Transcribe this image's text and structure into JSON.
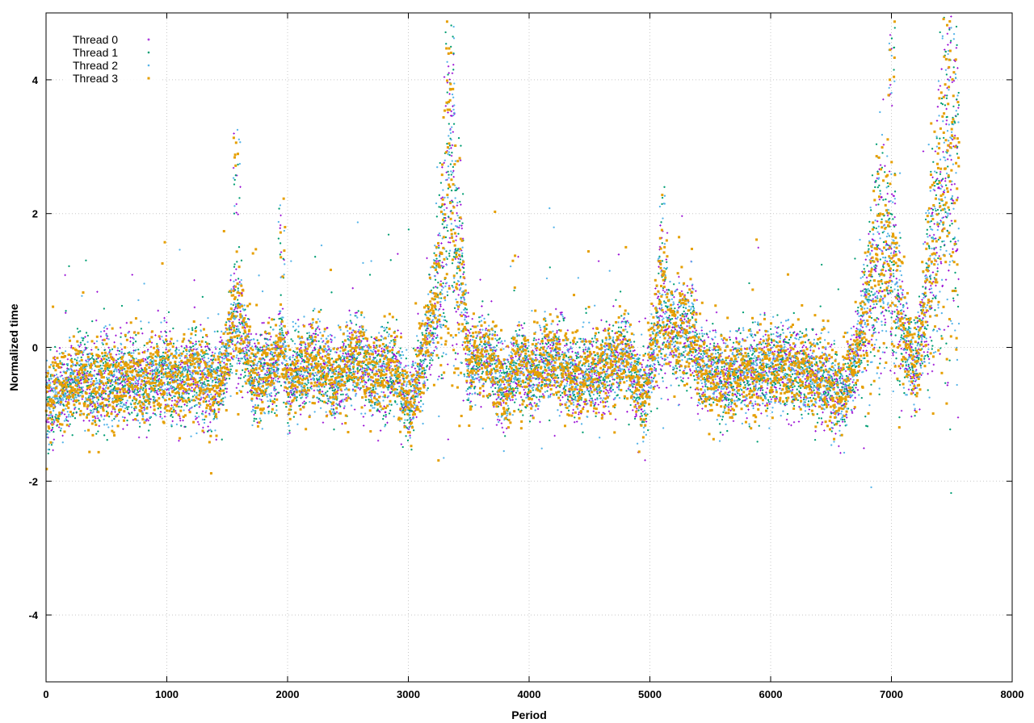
{
  "chart_data": {
    "type": "scatter",
    "title": "",
    "xlabel": "Period",
    "ylabel": "Normalized time",
    "xlim": [
      0,
      8000
    ],
    "ylim": [
      -5,
      5
    ],
    "x_ticks": [
      0,
      1000,
      2000,
      3000,
      4000,
      5000,
      6000,
      7000,
      8000
    ],
    "y_ticks": [
      -4,
      -2,
      0,
      2,
      4
    ],
    "x_tick_labels": [
      "0",
      "1000",
      "2000",
      "3000",
      "4000",
      "5000",
      "6000",
      "7000",
      "8000"
    ],
    "y_tick_labels": [
      "-4",
      "-2",
      "0",
      "2",
      "4"
    ],
    "grid": true,
    "legend_position": "top-left",
    "n_points_per_series": 7560,
    "series": [
      {
        "name": "Thread 0",
        "color": "#9400d3",
        "marker": "plus"
      },
      {
        "name": "Thread 1",
        "color": "#009e73",
        "marker": "dot"
      },
      {
        "name": "Thread 2",
        "color": "#56b4e9",
        "marker": "dot"
      },
      {
        "name": "Thread 3",
        "color": "#e69f00",
        "marker": "square"
      }
    ],
    "trend": [
      {
        "x": 0,
        "y": -0.9
      },
      {
        "x": 100,
        "y": -0.65
      },
      {
        "x": 200,
        "y": -0.6
      },
      {
        "x": 300,
        "y": -0.35
      },
      {
        "x": 400,
        "y": -0.65
      },
      {
        "x": 500,
        "y": -0.45
      },
      {
        "x": 600,
        "y": -0.6
      },
      {
        "x": 700,
        "y": -0.35
      },
      {
        "x": 800,
        "y": -0.6
      },
      {
        "x": 900,
        "y": -0.45
      },
      {
        "x": 1000,
        "y": -0.3
      },
      {
        "x": 1100,
        "y": -0.5
      },
      {
        "x": 1200,
        "y": -0.4
      },
      {
        "x": 1300,
        "y": -0.45
      },
      {
        "x": 1400,
        "y": -0.65
      },
      {
        "x": 1500,
        "y": -0.15
      },
      {
        "x": 1550,
        "y": 0.4
      },
      {
        "x": 1600,
        "y": 0.5
      },
      {
        "x": 1700,
        "y": -0.45
      },
      {
        "x": 1800,
        "y": -0.35
      },
      {
        "x": 1900,
        "y": -0.3
      },
      {
        "x": 1950,
        "y": 0.1
      },
      {
        "x": 2000,
        "y": -0.55
      },
      {
        "x": 2200,
        "y": -0.2
      },
      {
        "x": 2300,
        "y": -0.4
      },
      {
        "x": 2400,
        "y": -0.55
      },
      {
        "x": 2500,
        "y": -0.25
      },
      {
        "x": 2600,
        "y": -0.1
      },
      {
        "x": 2700,
        "y": -0.5
      },
      {
        "x": 2900,
        "y": -0.25
      },
      {
        "x": 3000,
        "y": -0.95
      },
      {
        "x": 3100,
        "y": -0.3
      },
      {
        "x": 3200,
        "y": 0.4
      },
      {
        "x": 3300,
        "y": 1.6
      },
      {
        "x": 3350,
        "y": 2.6
      },
      {
        "x": 3400,
        "y": 1.3
      },
      {
        "x": 3450,
        "y": 0.9
      },
      {
        "x": 3500,
        "y": -0.4
      },
      {
        "x": 3600,
        "y": -0.05
      },
      {
        "x": 3700,
        "y": -0.15
      },
      {
        "x": 3800,
        "y": -0.7
      },
      {
        "x": 3900,
        "y": -0.25
      },
      {
        "x": 4000,
        "y": -0.45
      },
      {
        "x": 4200,
        "y": -0.15
      },
      {
        "x": 4400,
        "y": -0.5
      },
      {
        "x": 4600,
        "y": -0.35
      },
      {
        "x": 4800,
        "y": -0.1
      },
      {
        "x": 4950,
        "y": -0.85
      },
      {
        "x": 5000,
        "y": -0.3
      },
      {
        "x": 5100,
        "y": 0.6
      },
      {
        "x": 5200,
        "y": 0.1
      },
      {
        "x": 5350,
        "y": 0.3
      },
      {
        "x": 5400,
        "y": -0.3
      },
      {
        "x": 5600,
        "y": -0.45
      },
      {
        "x": 5800,
        "y": -0.4
      },
      {
        "x": 6000,
        "y": -0.3
      },
      {
        "x": 6200,
        "y": -0.35
      },
      {
        "x": 6400,
        "y": -0.4
      },
      {
        "x": 6600,
        "y": -0.75
      },
      {
        "x": 6700,
        "y": -0.2
      },
      {
        "x": 6800,
        "y": 0.6
      },
      {
        "x": 6900,
        "y": 1.5
      },
      {
        "x": 7000,
        "y": 1.2
      },
      {
        "x": 7100,
        "y": 0.2
      },
      {
        "x": 7200,
        "y": -0.35
      },
      {
        "x": 7300,
        "y": 0.8
      },
      {
        "x": 7400,
        "y": 2.0
      },
      {
        "x": 7500,
        "y": 2.8
      },
      {
        "x": 7560,
        "y": 2.5
      }
    ],
    "peaks": [
      {
        "x": 3350,
        "y": 4.9
      },
      {
        "x": 1580,
        "y": 3.3
      },
      {
        "x": 7450,
        "y": 5.0
      },
      {
        "x": 7000,
        "y": 5.0
      },
      {
        "x": 5100,
        "y": 2.4
      },
      {
        "x": 1950,
        "y": 2.3
      }
    ]
  }
}
